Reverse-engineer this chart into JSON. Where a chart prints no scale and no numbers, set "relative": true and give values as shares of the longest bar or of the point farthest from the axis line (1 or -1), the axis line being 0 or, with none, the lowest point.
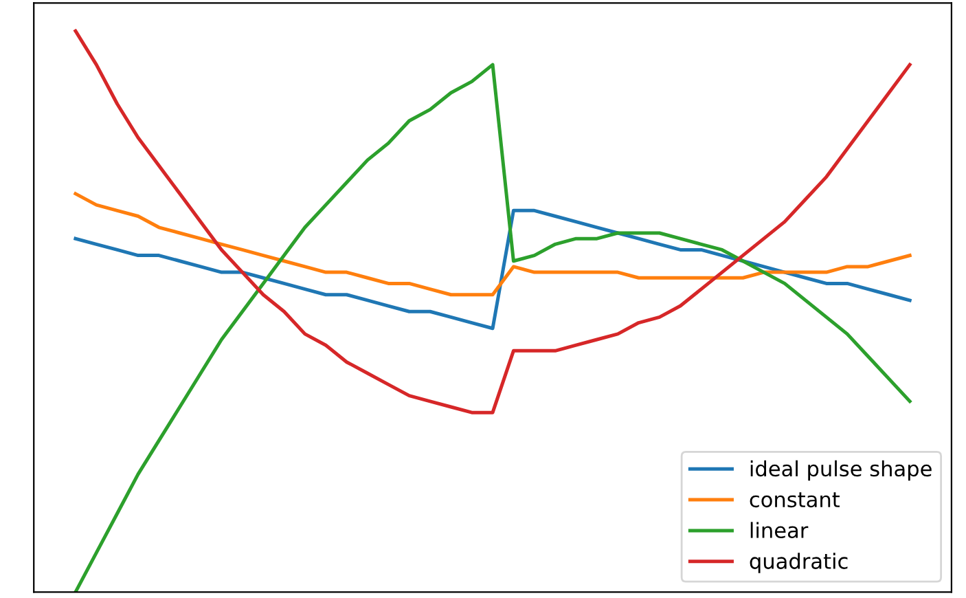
{
  "chart_data": {
    "type": "line",
    "relative": true,
    "legend": "lower right",
    "categories": [
      null,
      null,
      null,
      null,
      null,
      null,
      null,
      null,
      null,
      null,
      null,
      null,
      null,
      null,
      null,
      null,
      null,
      null,
      null,
      null,
      null,
      null,
      null,
      null,
      null,
      null,
      null,
      null,
      null,
      null,
      null,
      null,
      null,
      null,
      null,
      null,
      null,
      null,
      null,
      null,
      null
    ],
    "series": [
      {
        "name": "ideal pulse shape",
        "color": "#1f77b4",
        "values": [
          0.63,
          0.62,
          0.61,
          0.6,
          0.6,
          0.59,
          0.58,
          0.57,
          0.57,
          0.56,
          0.55,
          0.54,
          0.53,
          0.53,
          0.52,
          0.51,
          0.5,
          0.5,
          0.49,
          0.48,
          0.47,
          0.68,
          0.68,
          0.67,
          0.66,
          0.65,
          0.64,
          0.63,
          0.62,
          0.61,
          0.61,
          0.6,
          0.59,
          0.58,
          0.57,
          0.56,
          0.55,
          0.55,
          0.54,
          0.53,
          0.52
        ]
      },
      {
        "name": "constant",
        "color": "#ff7f0e",
        "values": [
          0.71,
          0.69,
          0.68,
          0.67,
          0.65,
          0.64,
          0.63,
          0.62,
          0.61,
          0.6,
          0.59,
          0.58,
          0.57,
          0.57,
          0.56,
          0.55,
          0.55,
          0.54,
          0.53,
          0.53,
          0.53,
          0.58,
          0.57,
          0.57,
          0.57,
          0.57,
          0.57,
          0.56,
          0.56,
          0.56,
          0.56,
          0.56,
          0.56,
          0.57,
          0.57,
          0.57,
          0.57,
          0.58,
          0.58,
          0.59,
          0.6
        ]
      },
      {
        "name": "linear",
        "color": "#2ca02c",
        "values": [
          0.0,
          0.07,
          0.14,
          0.21,
          0.27,
          0.33,
          0.39,
          0.45,
          0.5,
          0.55,
          0.6,
          0.65,
          0.69,
          0.73,
          0.77,
          0.8,
          0.84,
          0.86,
          0.89,
          0.91,
          0.94,
          0.59,
          0.6,
          0.62,
          0.63,
          0.63,
          0.64,
          0.64,
          0.64,
          0.63,
          0.62,
          0.61,
          0.59,
          0.57,
          0.55,
          0.52,
          0.49,
          0.46,
          0.42,
          0.38,
          0.34
        ]
      },
      {
        "name": "quadratic",
        "color": "#d62728",
        "values": [
          1.0,
          0.94,
          0.87,
          0.81,
          0.76,
          0.71,
          0.66,
          0.61,
          0.57,
          0.53,
          0.5,
          0.46,
          0.44,
          0.41,
          0.39,
          0.37,
          0.35,
          0.34,
          0.33,
          0.32,
          0.32,
          0.43,
          0.43,
          0.43,
          0.44,
          0.45,
          0.46,
          0.48,
          0.49,
          0.51,
          0.54,
          0.57,
          0.6,
          0.63,
          0.66,
          0.7,
          0.74,
          0.79,
          0.84,
          0.89,
          0.94
        ]
      }
    ]
  }
}
